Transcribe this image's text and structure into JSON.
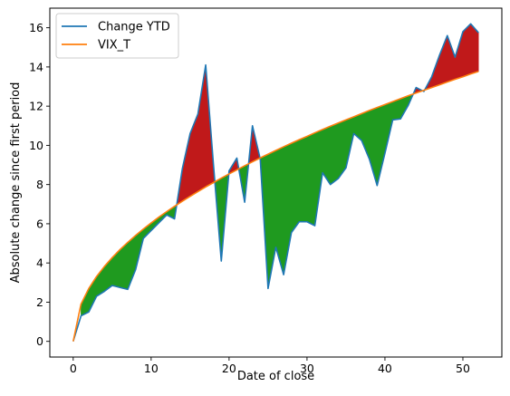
{
  "chart_data": {
    "type": "line",
    "xlabel": "Date of close",
    "ylabel": "Absolute change since first period",
    "xlim": [
      -3,
      55
    ],
    "ylim": [
      -0.8,
      17
    ],
    "x_ticks": [
      0,
      10,
      20,
      30,
      40,
      50
    ],
    "y_ticks": [
      0,
      2,
      4,
      6,
      8,
      10,
      12,
      14,
      16
    ],
    "legend_position": "top-left",
    "x": [
      0,
      1,
      2,
      3,
      4,
      5,
      6,
      7,
      8,
      9,
      10,
      11,
      12,
      13,
      14,
      15,
      16,
      17,
      18,
      19,
      20,
      21,
      22,
      23,
      24,
      25,
      26,
      27,
      28,
      29,
      30,
      31,
      32,
      33,
      34,
      35,
      36,
      37,
      38,
      39,
      40,
      41,
      42,
      43,
      44,
      45,
      46,
      47,
      48,
      49,
      50,
      51,
      52
    ],
    "series": [
      {
        "name": "Change YTD",
        "color": "#1f77b4",
        "values": [
          0.0,
          1.3,
          1.5,
          2.3,
          2.55,
          2.85,
          2.75,
          2.65,
          3.65,
          5.25,
          5.65,
          6.05,
          6.45,
          6.25,
          8.8,
          10.6,
          11.6,
          14.1,
          9.0,
          4.1,
          8.7,
          9.35,
          7.1,
          11.0,
          9.3,
          2.7,
          4.8,
          3.4,
          5.55,
          6.1,
          6.1,
          5.9,
          8.6,
          8.0,
          8.3,
          8.85,
          10.6,
          10.25,
          9.3,
          7.95,
          9.6,
          11.3,
          11.35,
          12.05,
          12.95,
          12.75,
          13.5,
          14.6,
          15.6,
          14.5,
          15.8,
          16.2,
          15.75
        ]
      },
      {
        "name": "VIX_T",
        "color": "#ff7f0e",
        "values": [
          0.0,
          1.9,
          2.7,
          3.31,
          3.82,
          4.27,
          4.68,
          5.05,
          5.4,
          5.73,
          6.04,
          6.34,
          6.62,
          6.89,
          7.15,
          7.4,
          7.64,
          7.88,
          8.1,
          8.33,
          8.54,
          8.75,
          8.96,
          9.16,
          9.36,
          9.55,
          9.74,
          9.93,
          10.11,
          10.29,
          10.46,
          10.64,
          10.81,
          10.98,
          11.14,
          11.3,
          11.46,
          11.62,
          11.78,
          11.93,
          12.08,
          12.23,
          12.38,
          12.53,
          12.67,
          12.81,
          12.95,
          13.09,
          13.23,
          13.37,
          13.5,
          13.64,
          13.77
        ]
      }
    ],
    "fill_above_color": "#c0191a",
    "fill_below_color": "#1f9a1f"
  }
}
